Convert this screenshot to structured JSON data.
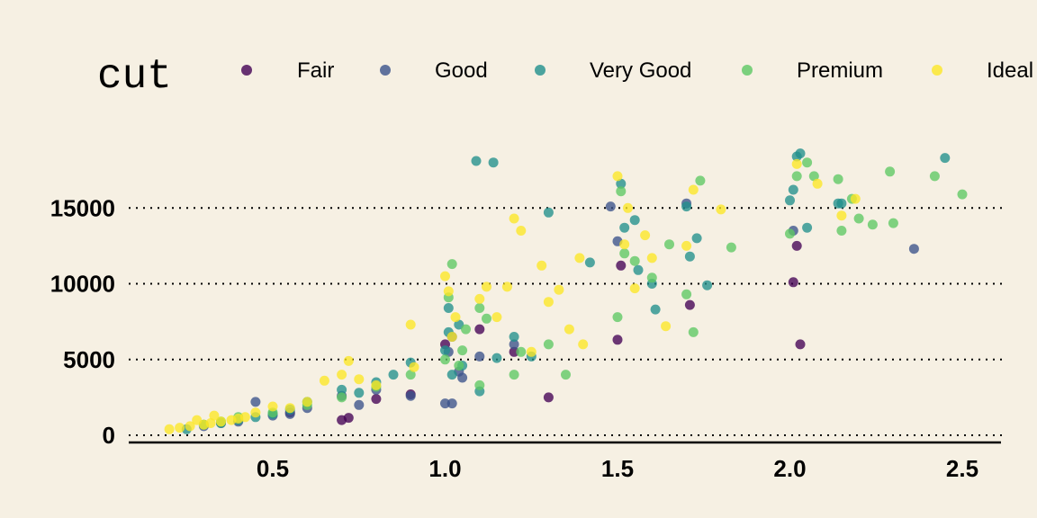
{
  "chart_data": {
    "type": "scatter",
    "title": "",
    "xlabel": "",
    "ylabel": "",
    "legend": {
      "title": "cut",
      "position": "top"
    },
    "xlim": [
      0.1,
      2.62
    ],
    "ylim": [
      -500,
      19500
    ],
    "x_ticks": [
      0.5,
      1.0,
      1.5,
      2.0,
      2.5
    ],
    "x_tick_labels": [
      "0.5",
      "1.0",
      "1.5",
      "2.0",
      "2.5"
    ],
    "y_ticks": [
      0,
      5000,
      10000,
      15000
    ],
    "y_tick_labels": [
      "0",
      "5000",
      "10000",
      "15000"
    ],
    "grid": {
      "horizontal": true,
      "vertical": false,
      "style": "dotted"
    },
    "colors": {
      "background": "#f6f0e3",
      "Fair": "#440154",
      "Good": "#3b528b",
      "Very Good": "#21908c",
      "Premium": "#5dc863",
      "Ideal": "#fde725"
    },
    "series": [
      {
        "name": "Fair",
        "color": "#440154",
        "points": [
          [
            0.7,
            1000
          ],
          [
            0.72,
            1150
          ],
          [
            0.8,
            2400
          ],
          [
            0.9,
            2700
          ],
          [
            1.0,
            6000
          ],
          [
            1.1,
            7000
          ],
          [
            1.3,
            2500
          ],
          [
            1.5,
            6300
          ],
          [
            1.51,
            11200
          ],
          [
            1.71,
            8600
          ],
          [
            2.01,
            10100
          ],
          [
            2.02,
            12500
          ],
          [
            2.03,
            6000
          ],
          [
            0.55,
            1500
          ],
          [
            1.2,
            5500
          ]
        ]
      },
      {
        "name": "Good",
        "color": "#3b528b",
        "points": [
          [
            0.3,
            600
          ],
          [
            0.35,
            800
          ],
          [
            0.4,
            900
          ],
          [
            0.45,
            2200
          ],
          [
            0.5,
            1300
          ],
          [
            0.55,
            1400
          ],
          [
            0.6,
            1800
          ],
          [
            0.7,
            2600
          ],
          [
            0.9,
            2600
          ],
          [
            1.0,
            2100
          ],
          [
            1.01,
            5500
          ],
          [
            1.02,
            6500
          ],
          [
            1.04,
            4200
          ],
          [
            1.1,
            5200
          ],
          [
            1.2,
            6000
          ],
          [
            1.48,
            15100
          ],
          [
            1.5,
            12800
          ],
          [
            1.7,
            15300
          ],
          [
            2.01,
            13500
          ],
          [
            2.36,
            12300
          ],
          [
            0.8,
            3000
          ],
          [
            0.75,
            2000
          ],
          [
            1.02,
            2100
          ],
          [
            1.05,
            3800
          ]
        ]
      },
      {
        "name": "Very Good",
        "color": "#21908c",
        "points": [
          [
            0.25,
            400
          ],
          [
            0.3,
            700
          ],
          [
            0.35,
            800
          ],
          [
            0.4,
            1000
          ],
          [
            0.45,
            1200
          ],
          [
            0.5,
            1400
          ],
          [
            0.55,
            1700
          ],
          [
            0.6,
            2200
          ],
          [
            0.7,
            3000
          ],
          [
            0.75,
            2800
          ],
          [
            0.8,
            3500
          ],
          [
            0.85,
            4000
          ],
          [
            0.9,
            4800
          ],
          [
            1.0,
            5600
          ],
          [
            1.01,
            6800
          ],
          [
            1.02,
            4000
          ],
          [
            1.04,
            7300
          ],
          [
            1.05,
            4600
          ],
          [
            1.09,
            18100
          ],
          [
            1.14,
            18000
          ],
          [
            1.15,
            5100
          ],
          [
            1.2,
            6500
          ],
          [
            1.25,
            5200
          ],
          [
            1.3,
            14700
          ],
          [
            1.42,
            11400
          ],
          [
            1.51,
            16600
          ],
          [
            1.52,
            13700
          ],
          [
            1.55,
            14200
          ],
          [
            1.56,
            10900
          ],
          [
            1.6,
            10000
          ],
          [
            1.7,
            15100
          ],
          [
            1.71,
            11800
          ],
          [
            1.73,
            13000
          ],
          [
            1.76,
            9900
          ],
          [
            2.0,
            15500
          ],
          [
            2.01,
            16200
          ],
          [
            2.02,
            18400
          ],
          [
            2.03,
            18600
          ],
          [
            2.05,
            13700
          ],
          [
            2.14,
            15300
          ],
          [
            2.45,
            18300
          ],
          [
            2.15,
            15300
          ],
          [
            1.01,
            8400
          ],
          [
            1.1,
            2900
          ],
          [
            1.61,
            8300
          ]
        ]
      },
      {
        "name": "Premium",
        "color": "#5dc863",
        "points": [
          [
            0.3,
            700
          ],
          [
            0.35,
            900
          ],
          [
            0.4,
            1200
          ],
          [
            0.5,
            1500
          ],
          [
            0.6,
            2000
          ],
          [
            0.7,
            2500
          ],
          [
            0.8,
            3200
          ],
          [
            0.9,
            4000
          ],
          [
            1.0,
            5000
          ],
          [
            1.01,
            9100
          ],
          [
            1.02,
            11300
          ],
          [
            1.04,
            4600
          ],
          [
            1.06,
            7000
          ],
          [
            1.1,
            3300
          ],
          [
            1.12,
            7700
          ],
          [
            1.2,
            4000
          ],
          [
            1.22,
            5500
          ],
          [
            1.3,
            6000
          ],
          [
            1.35,
            4000
          ],
          [
            1.5,
            7800
          ],
          [
            1.51,
            16100
          ],
          [
            1.52,
            12000
          ],
          [
            1.55,
            11500
          ],
          [
            1.6,
            10400
          ],
          [
            1.65,
            12600
          ],
          [
            1.7,
            9300
          ],
          [
            1.72,
            6800
          ],
          [
            1.74,
            16800
          ],
          [
            1.83,
            12400
          ],
          [
            2.0,
            13300
          ],
          [
            2.02,
            17100
          ],
          [
            2.05,
            18000
          ],
          [
            2.07,
            17100
          ],
          [
            2.14,
            16900
          ],
          [
            2.15,
            13500
          ],
          [
            2.2,
            14300
          ],
          [
            2.24,
            13900
          ],
          [
            2.3,
            14000
          ],
          [
            2.29,
            17400
          ],
          [
            2.42,
            17100
          ],
          [
            2.5,
            15900
          ],
          [
            1.1,
            8400
          ],
          [
            1.05,
            5600
          ],
          [
            2.18,
            15600
          ]
        ]
      },
      {
        "name": "Ideal",
        "color": "#fde725",
        "points": [
          [
            0.2,
            400
          ],
          [
            0.23,
            500
          ],
          [
            0.26,
            600
          ],
          [
            0.3,
            700
          ],
          [
            0.32,
            800
          ],
          [
            0.35,
            900
          ],
          [
            0.38,
            1000
          ],
          [
            0.4,
            1100
          ],
          [
            0.42,
            1200
          ],
          [
            0.45,
            1500
          ],
          [
            0.5,
            1900
          ],
          [
            0.55,
            1800
          ],
          [
            0.6,
            2200
          ],
          [
            0.65,
            3600
          ],
          [
            0.7,
            4000
          ],
          [
            0.72,
            4900
          ],
          [
            0.75,
            3700
          ],
          [
            0.8,
            3300
          ],
          [
            0.9,
            7300
          ],
          [
            0.91,
            4500
          ],
          [
            1.0,
            10500
          ],
          [
            1.02,
            6500
          ],
          [
            1.03,
            7800
          ],
          [
            1.1,
            9000
          ],
          [
            1.12,
            9800
          ],
          [
            1.15,
            7800
          ],
          [
            1.18,
            9800
          ],
          [
            1.2,
            14300
          ],
          [
            1.22,
            13500
          ],
          [
            1.25,
            5500
          ],
          [
            1.28,
            11200
          ],
          [
            1.3,
            8800
          ],
          [
            1.33,
            9600
          ],
          [
            1.36,
            7000
          ],
          [
            1.39,
            11700
          ],
          [
            1.4,
            6000
          ],
          [
            1.5,
            17100
          ],
          [
            1.52,
            12600
          ],
          [
            1.53,
            15000
          ],
          [
            1.55,
            9700
          ],
          [
            1.58,
            13200
          ],
          [
            1.6,
            11700
          ],
          [
            1.64,
            7200
          ],
          [
            1.7,
            12500
          ],
          [
            1.72,
            16200
          ],
          [
            1.8,
            14900
          ],
          [
            2.02,
            17900
          ],
          [
            2.08,
            16600
          ],
          [
            2.15,
            14500
          ],
          [
            2.19,
            15600
          ],
          [
            1.01,
            9500
          ],
          [
            0.28,
            1000
          ],
          [
            0.33,
            1300
          ]
        ]
      }
    ]
  }
}
